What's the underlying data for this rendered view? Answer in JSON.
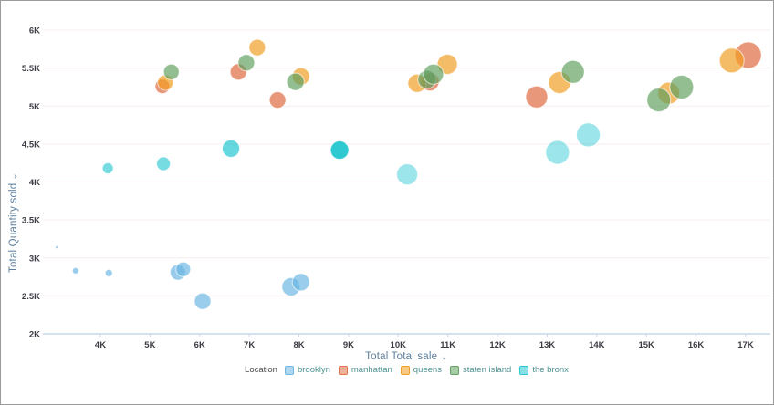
{
  "icons": {
    "chevron_down": "⌄"
  },
  "legend": {
    "title": "Location"
  },
  "chart_data": {
    "type": "scatter",
    "subtype": "bubble",
    "title": "",
    "xlabel": "Total Total sale",
    "ylabel": "Total Quantity sold",
    "units": "K",
    "xlim": [
      3.1,
      17.55
    ],
    "ylim": [
      2,
      6
    ],
    "x_ticks": {
      "values": [
        4,
        5,
        6,
        7,
        8,
        9,
        10,
        11,
        12,
        13,
        14,
        15,
        16,
        17
      ],
      "labels": [
        "4K",
        "5K",
        "6K",
        "7K",
        "8K",
        "9K",
        "10K",
        "11K",
        "12K",
        "13K",
        "14K",
        "15K",
        "16K",
        "17K"
      ]
    },
    "y_ticks": {
      "values": [
        2,
        2.5,
        3,
        3.5,
        4,
        4.5,
        5,
        5.5,
        6
      ],
      "labels": [
        "2K",
        "2.5K",
        "3K",
        "3.5K",
        "4K",
        "4.5K",
        "5K",
        "5.5K",
        "6K"
      ]
    },
    "grid": "horizontal",
    "legend_position": "bottom",
    "series": [
      {
        "name": "brooklyn",
        "color": "#6ab5e2",
        "alpha": 0.68,
        "points": [
          {
            "x": 3.12,
            "y": 3.14,
            "r": 1.5
          },
          {
            "x": 3.5,
            "y": 2.83,
            "r": 3.5
          },
          {
            "x": 4.17,
            "y": 2.8,
            "r": 4
          },
          {
            "x": 5.56,
            "y": 2.81,
            "r": 8.5
          },
          {
            "x": 5.67,
            "y": 2.85,
            "r": 8
          },
          {
            "x": 6.06,
            "y": 2.43,
            "r": 9
          },
          {
            "x": 7.84,
            "y": 2.62,
            "r": 10
          },
          {
            "x": 8.04,
            "y": 2.68,
            "r": 9.5
          }
        ]
      },
      {
        "name": "manhattan",
        "color": "#e16f47",
        "alpha": 0.72,
        "points": [
          {
            "x": 5.25,
            "y": 5.26,
            "r": 8
          },
          {
            "x": 6.78,
            "y": 5.45,
            "r": 9
          },
          {
            "x": 7.57,
            "y": 5.08,
            "r": 9
          },
          {
            "x": 10.64,
            "y": 5.32,
            "r": 10
          },
          {
            "x": 12.79,
            "y": 5.12,
            "r": 12
          },
          {
            "x": 17.05,
            "y": 5.67,
            "r": 14.5
          }
        ]
      },
      {
        "name": "queens",
        "color": "#f09c20",
        "alpha": 0.68,
        "points": [
          {
            "x": 5.31,
            "y": 5.31,
            "r": 8.5
          },
          {
            "x": 7.16,
            "y": 5.77,
            "r": 9
          },
          {
            "x": 8.04,
            "y": 5.39,
            "r": 9.5
          },
          {
            "x": 10.38,
            "y": 5.3,
            "r": 10
          },
          {
            "x": 10.99,
            "y": 5.55,
            "r": 11
          },
          {
            "x": 13.25,
            "y": 5.31,
            "r": 12
          },
          {
            "x": 15.45,
            "y": 5.17,
            "r": 12
          },
          {
            "x": 16.72,
            "y": 5.6,
            "r": 13.5
          }
        ]
      },
      {
        "name": "staten island",
        "color": "#5f9f5f",
        "alpha": 0.68,
        "points": [
          {
            "x": 5.43,
            "y": 5.45,
            "r": 8.5
          },
          {
            "x": 6.94,
            "y": 5.57,
            "r": 9
          },
          {
            "x": 7.93,
            "y": 5.32,
            "r": 9.5
          },
          {
            "x": 10.58,
            "y": 5.35,
            "r": 10
          },
          {
            "x": 10.71,
            "y": 5.42,
            "r": 11
          },
          {
            "x": 13.52,
            "y": 5.45,
            "r": 12.5
          },
          {
            "x": 15.25,
            "y": 5.08,
            "r": 13
          },
          {
            "x": 15.71,
            "y": 5.25,
            "r": 13
          }
        ]
      },
      {
        "name": "the bronx",
        "color": "#24c6d0",
        "alpha": 0.62,
        "points": [
          {
            "x": 4.15,
            "y": 4.18,
            "r": 6
          },
          {
            "x": 5.27,
            "y": 4.24,
            "r": 7.5
          },
          {
            "x": 6.63,
            "y": 4.44,
            "r": 9.5,
            "a": 0.7
          },
          {
            "x": 8.82,
            "y": 4.42,
            "r": 10,
            "a": 0.95
          },
          {
            "x": 10.18,
            "y": 4.1,
            "r": 11.5,
            "a": 0.45
          },
          {
            "x": 13.21,
            "y": 4.39,
            "r": 13,
            "a": 0.45
          },
          {
            "x": 13.83,
            "y": 4.62,
            "r": 13,
            "a": 0.45
          }
        ]
      }
    ]
  }
}
